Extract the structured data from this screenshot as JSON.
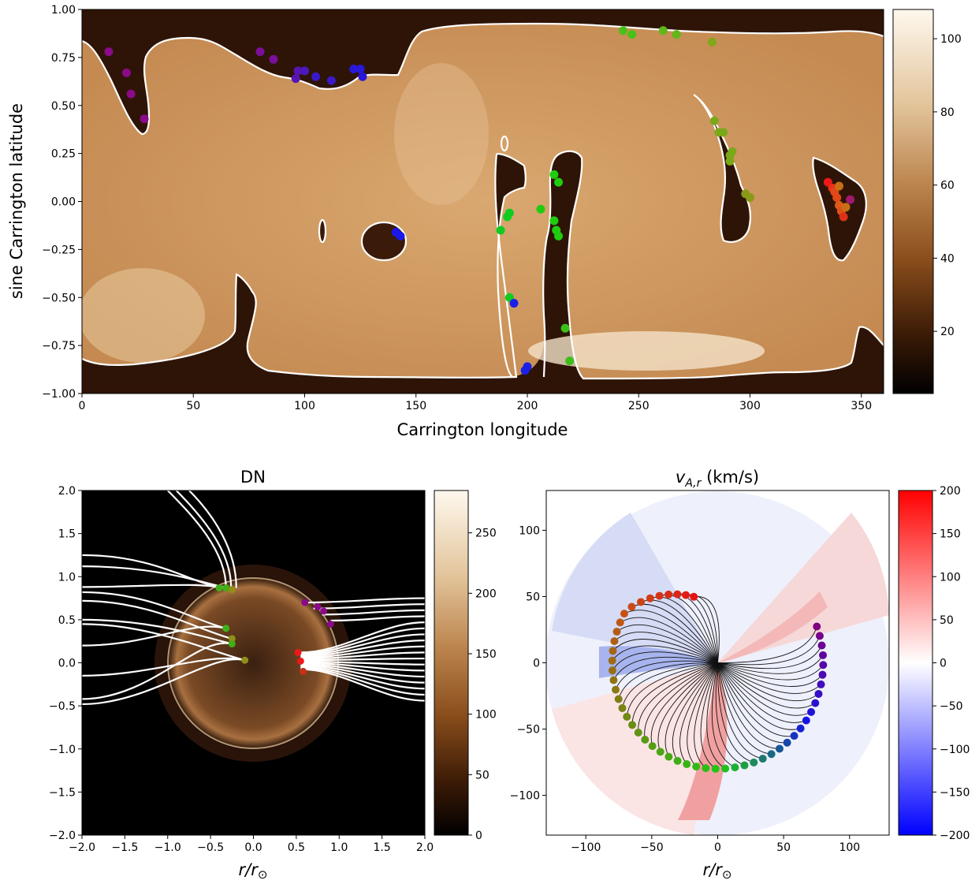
{
  "chart_data": [
    {
      "type": "heatmap",
      "title": "",
      "xlabel": "Carrington longitude",
      "ylabel": "sine Carrington latitude",
      "xlim": [
        0,
        360
      ],
      "ylim": [
        -1.0,
        1.0
      ],
      "xticks": [
        "0",
        "50",
        "100",
        "150",
        "200",
        "250",
        "300",
        "350"
      ],
      "yticks": [
        "−1.00",
        "−0.75",
        "−0.50",
        "−0.25",
        "0.00",
        "0.25",
        "0.50",
        "0.75",
        "1.00"
      ],
      "colorbar": {
        "ticks": [
          "20",
          "40",
          "60",
          "80",
          "100"
        ],
        "range": [
          3,
          108
        ],
        "cmap": "copper-brown"
      },
      "contour_color": "#ffffff",
      "footpoints": [
        {
          "x": 12,
          "y": 0.78,
          "color": "#8a0a8a"
        },
        {
          "x": 20,
          "y": 0.67,
          "color": "#8a0a8a"
        },
        {
          "x": 22,
          "y": 0.56,
          "color": "#8a0a8a"
        },
        {
          "x": 28,
          "y": 0.43,
          "color": "#8a0a8a"
        },
        {
          "x": 80,
          "y": 0.78,
          "color": "#7a0f9a"
        },
        {
          "x": 86,
          "y": 0.74,
          "color": "#7a0f9a"
        },
        {
          "x": 96,
          "y": 0.64,
          "color": "#5a14b0"
        },
        {
          "x": 97,
          "y": 0.68,
          "color": "#5a14b0"
        },
        {
          "x": 100,
          "y": 0.68,
          "color": "#4a18c0"
        },
        {
          "x": 105,
          "y": 0.65,
          "color": "#3a1ac8"
        },
        {
          "x": 112,
          "y": 0.63,
          "color": "#3a1ac8"
        },
        {
          "x": 122,
          "y": 0.69,
          "color": "#2a18d8"
        },
        {
          "x": 125,
          "y": 0.69,
          "color": "#2a18d8"
        },
        {
          "x": 126,
          "y": 0.65,
          "color": "#2a18d8"
        },
        {
          "x": 141,
          "y": -0.16,
          "color": "#1a18e8"
        },
        {
          "x": 143,
          "y": -0.18,
          "color": "#1a18e8"
        },
        {
          "x": 188,
          "y": -0.15,
          "color": "#10cc20"
        },
        {
          "x": 191,
          "y": -0.08,
          "color": "#10cc20"
        },
        {
          "x": 192,
          "y": -0.06,
          "color": "#10cc20"
        },
        {
          "x": 192,
          "y": -0.5,
          "color": "#10cc20"
        },
        {
          "x": 194,
          "y": -0.53,
          "color": "#1a20e8"
        },
        {
          "x": 200,
          "y": -0.86,
          "color": "#1a20e8"
        },
        {
          "x": 199,
          "y": -0.88,
          "color": "#1a20e8"
        },
        {
          "x": 206,
          "y": -0.04,
          "color": "#20cc10"
        },
        {
          "x": 212,
          "y": 0.14,
          "color": "#20cc10"
        },
        {
          "x": 214,
          "y": 0.1,
          "color": "#20cc10"
        },
        {
          "x": 212,
          "y": -0.1,
          "color": "#20cc10"
        },
        {
          "x": 213,
          "y": -0.15,
          "color": "#20cc10"
        },
        {
          "x": 214,
          "y": -0.18,
          "color": "#20cc10"
        },
        {
          "x": 217,
          "y": -0.66,
          "color": "#3cc018"
        },
        {
          "x": 219,
          "y": -0.83,
          "color": "#3cc018"
        },
        {
          "x": 243,
          "y": 0.89,
          "color": "#48c018"
        },
        {
          "x": 247,
          "y": 0.87,
          "color": "#48c018"
        },
        {
          "x": 261,
          "y": 0.89,
          "color": "#60b818"
        },
        {
          "x": 267,
          "y": 0.87,
          "color": "#60b818"
        },
        {
          "x": 283,
          "y": 0.83,
          "color": "#80a818"
        },
        {
          "x": 284,
          "y": 0.42,
          "color": "#7aa818"
        },
        {
          "x": 286,
          "y": 0.36,
          "color": "#7aa818"
        },
        {
          "x": 288,
          "y": 0.36,
          "color": "#7aa818"
        },
        {
          "x": 291,
          "y": 0.24,
          "color": "#7aa818"
        },
        {
          "x": 292,
          "y": 0.26,
          "color": "#7aa818"
        },
        {
          "x": 291,
          "y": 0.21,
          "color": "#7aa818"
        },
        {
          "x": 298,
          "y": 0.04,
          "color": "#8a9a18"
        },
        {
          "x": 300,
          "y": 0.02,
          "color": "#8a9a18"
        },
        {
          "x": 335,
          "y": 0.1,
          "color": "#ee1818"
        },
        {
          "x": 337,
          "y": 0.07,
          "color": "#ee3018"
        },
        {
          "x": 338,
          "y": 0.05,
          "color": "#e04818"
        },
        {
          "x": 339,
          "y": 0.02,
          "color": "#e04818"
        },
        {
          "x": 340,
          "y": -0.02,
          "color": "#e05a18"
        },
        {
          "x": 341,
          "y": -0.05,
          "color": "#dd5018"
        },
        {
          "x": 342,
          "y": -0.08,
          "color": "#dd3018"
        },
        {
          "x": 340,
          "y": 0.08,
          "color": "#c87018"
        },
        {
          "x": 343,
          "y": -0.03,
          "color": "#c87018"
        },
        {
          "x": 345,
          "y": 0.01,
          "color": "#a01870"
        }
      ]
    },
    {
      "type": "heatmap",
      "title": "DN",
      "xlabel": "r/r⊙",
      "ylabel": "",
      "xlim": [
        -2.0,
        2.0
      ],
      "ylim": [
        -2.0,
        2.0
      ],
      "xticks": [
        "−2.0",
        "−1.5",
        "−1.0",
        "−0.5",
        "0.0",
        "0.5",
        "1.0",
        "1.5",
        "2.0"
      ],
      "yticks": [
        "−2.0",
        "−1.5",
        "−1.0",
        "−0.5",
        "0.0",
        "0.5",
        "1.0",
        "1.5",
        "2.0"
      ],
      "colorbar": {
        "ticks": [
          "0",
          "50",
          "100",
          "150",
          "200",
          "250"
        ],
        "range": [
          0,
          285
        ],
        "cmap": "copper-brown"
      },
      "limb_radius": 1.0,
      "footpoints": [
        {
          "x": -0.4,
          "y": 0.87,
          "color": "#40b018"
        },
        {
          "x": -0.32,
          "y": 0.87,
          "color": "#40b018"
        },
        {
          "x": -0.25,
          "y": 0.85,
          "color": "#909018"
        },
        {
          "x": -0.32,
          "y": 0.4,
          "color": "#40b018"
        },
        {
          "x": -0.25,
          "y": 0.28,
          "color": "#909018"
        },
        {
          "x": -0.25,
          "y": 0.22,
          "color": "#40b018"
        },
        {
          "x": -0.1,
          "y": 0.03,
          "color": "#909018"
        },
        {
          "x": 0.6,
          "y": 0.7,
          "color": "#8a0a8a"
        },
        {
          "x": 0.75,
          "y": 0.65,
          "color": "#8a0a8a"
        },
        {
          "x": 0.82,
          "y": 0.6,
          "color": "#8a0a8a"
        },
        {
          "x": 0.9,
          "y": 0.45,
          "color": "#8a0a8a"
        },
        {
          "x": 0.52,
          "y": 0.12,
          "color": "#ee1818"
        },
        {
          "x": 0.55,
          "y": 0.02,
          "color": "#ee1818"
        },
        {
          "x": 0.58,
          "y": -0.1,
          "color": "#c83018"
        }
      ]
    },
    {
      "type": "heatmap",
      "title": "v_{A,r} (km/s)",
      "xlabel": "r/r⊙",
      "ylabel": "",
      "xlim": [
        -130,
        130
      ],
      "ylim": [
        -130,
        130
      ],
      "xticks": [
        "−100",
        "−50",
        "0",
        "50",
        "100"
      ],
      "yticks": [
        "−100",
        "−50",
        "0",
        "50",
        "100"
      ],
      "colorbar": {
        "ticks": [
          "−200",
          "−150",
          "−100",
          "−50",
          "0",
          "50",
          "100",
          "150",
          "200"
        ],
        "range": [
          -200,
          200
        ],
        "cmap": "bwr"
      },
      "disk_radius": 130,
      "ring_radius": 80,
      "footpoint_count": 52
    }
  ]
}
